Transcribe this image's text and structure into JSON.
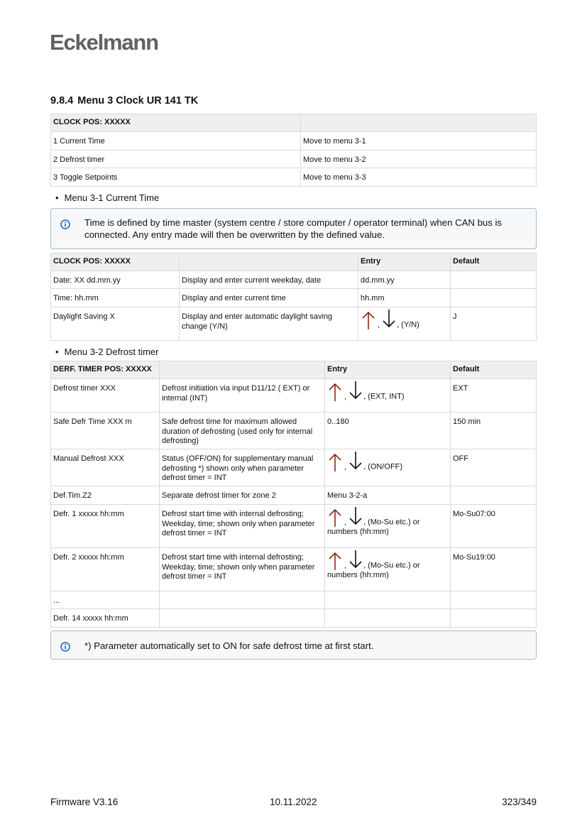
{
  "logo": "Eckelmann",
  "heading": {
    "number": "9.8.4",
    "title": "Menu 3 Clock UR 141 TK"
  },
  "table1": {
    "rows": [
      [
        "CLOCK POS: XXXXX",
        ""
      ],
      [
        "1 Current Time",
        "Move to menu 3-1"
      ],
      [
        "2 Defrost timer",
        "Move to menu 3-2"
      ],
      [
        "3 Toggle Setpoints",
        "Move to menu 3-3"
      ]
    ]
  },
  "bullet1": "Menu 3-1 Current Time",
  "info1": "Time is defined by time master (system centre / store computer / operator terminal) when CAN bus is connected. Any entry made will then be overwritten by the defined value.",
  "table2": {
    "rows": [
      [
        "CLOCK POS: XXXXX",
        "",
        "Entry",
        "Default"
      ],
      [
        "Date: XX dd.mm.yy",
        "Display and enter current weekday, date",
        "dd.mm.yy",
        ""
      ],
      [
        "Time: hh.mm",
        "Display and enter current time",
        "hh.mm",
        ""
      ],
      [
        "Daylight Saving X",
        "Display and enter automatic daylight saving change (Y/N)",
        {
          "arrows": true,
          "text": ", (Y/N)"
        },
        "J"
      ]
    ]
  },
  "bullet2": "Menu 3-2 Defrost timer",
  "table3": {
    "rows": [
      [
        "DERF. TIMER POS: XXXXX",
        "",
        "Entry",
        "Default"
      ],
      [
        "Defrost timer XXX",
        "Defrost initiation via input D11/12 ( EXT) or internal (INT)",
        {
          "arrows": true,
          "text": ", (EXT, INT)"
        },
        "EXT"
      ],
      [
        "Safe Defr Time XXX m",
        "Safe defrost time for maximum allowed duration of defrosting (used only for internal defrosting)",
        "0..180",
        "150 min"
      ],
      [
        "Manual Defrost XXX",
        "Status (OFF/ON) for supplementary manual defrosting *) shown only when parameter defrost timer = INT",
        {
          "arrows": true,
          "text": ", (ON/OFF)"
        },
        "OFF"
      ],
      [
        "Def.Tim.Z2",
        "Separate defrost timer for zone 2",
        "Menu 3-2-a",
        ""
      ],
      [
        "Defr. 1 xxxxx hh:mm",
        "Defrost start time with internal defrosting; Weekday, time; shown only when parameter defrost timer = INT",
        {
          "arrows": true,
          "text": ", (Mo-Su etc.) or",
          "text2": "numbers (hh:mm)"
        },
        "Mo-Su07:00"
      ],
      [
        "Defr. 2 xxxxx hh:mm",
        "Defrost start time with internal defrosting; Weekday, time; shown only when parameter defrost timer = INT",
        {
          "arrows": true,
          "text": ", (Mo-Su etc.) or",
          "text2": "numbers (hh:mm)"
        },
        "Mo-Su19:00"
      ],
      [
        "...",
        "",
        "",
        ""
      ],
      [
        "Defr. 14 xxxxx hh:mm",
        "",
        "",
        ""
      ]
    ]
  },
  "info2": "*) Parameter automatically set to ON for safe defrost time at first start.",
  "footer": {
    "left": "Firmware V3.16",
    "center": "10.11.2022",
    "right": "323/349"
  },
  "colors": {
    "arrow_up": "#8a2a0a",
    "info_icon": "#1f63b8",
    "header_bg": "#efefef"
  }
}
